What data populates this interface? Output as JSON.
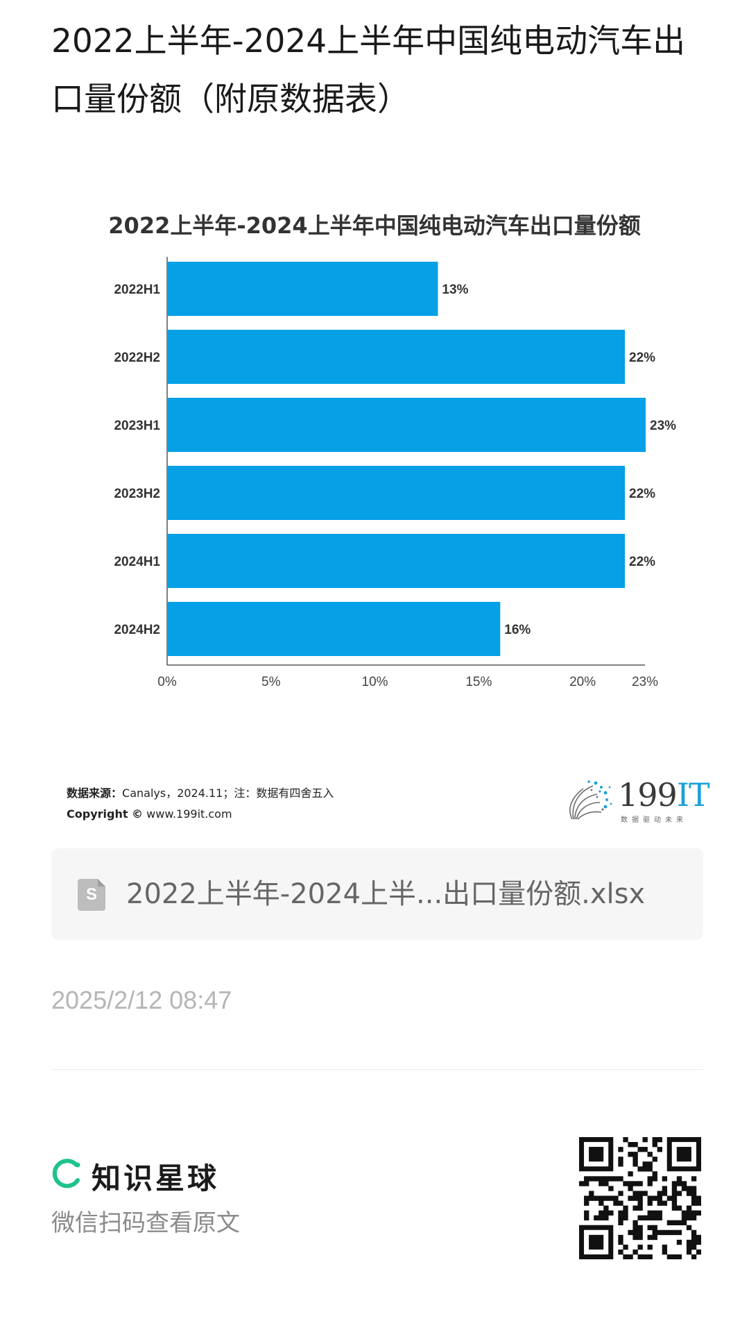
{
  "post": {
    "title": "2022上半年-2024上半年中国纯电动汽车出口量份额（附原数据表）"
  },
  "chart_data": {
    "type": "bar",
    "orientation": "horizontal",
    "title": "2022上半年-2024上半年中国纯电动汽车出口量份额",
    "categories": [
      "2022H1",
      "2022H2",
      "2023H1",
      "2023H2",
      "2024H1",
      "2024H2"
    ],
    "values": [
      13,
      22,
      23,
      22,
      22,
      16
    ],
    "value_labels": [
      "13%",
      "22%",
      "23%",
      "22%",
      "22%",
      "16%"
    ],
    "xticks": [
      "0%",
      "5%",
      "10%",
      "15%",
      "20%",
      "23%"
    ],
    "xtick_values": [
      0,
      5,
      10,
      15,
      20,
      23
    ],
    "xlim": [
      0,
      23
    ],
    "bar_color": "#06a0e6",
    "grid": false
  },
  "source": {
    "label": "数据来源：",
    "text": "Canalys，2024.11；注：数据有四舍五入",
    "copyright_label": "Copyright ©",
    "copyright_text": "www.199it.com"
  },
  "brand": {
    "name_num": "199",
    "name_it": "IT",
    "tagline": "数据驱动未来"
  },
  "file": {
    "icon_letter": "S",
    "name": "2022上半年-2024上半...出口量份额.xlsx"
  },
  "timestamp": "2025/2/12 08:47",
  "footer": {
    "brand_name": "知识星球",
    "hint": "微信扫码查看原文",
    "accent": "#1ec28b"
  }
}
